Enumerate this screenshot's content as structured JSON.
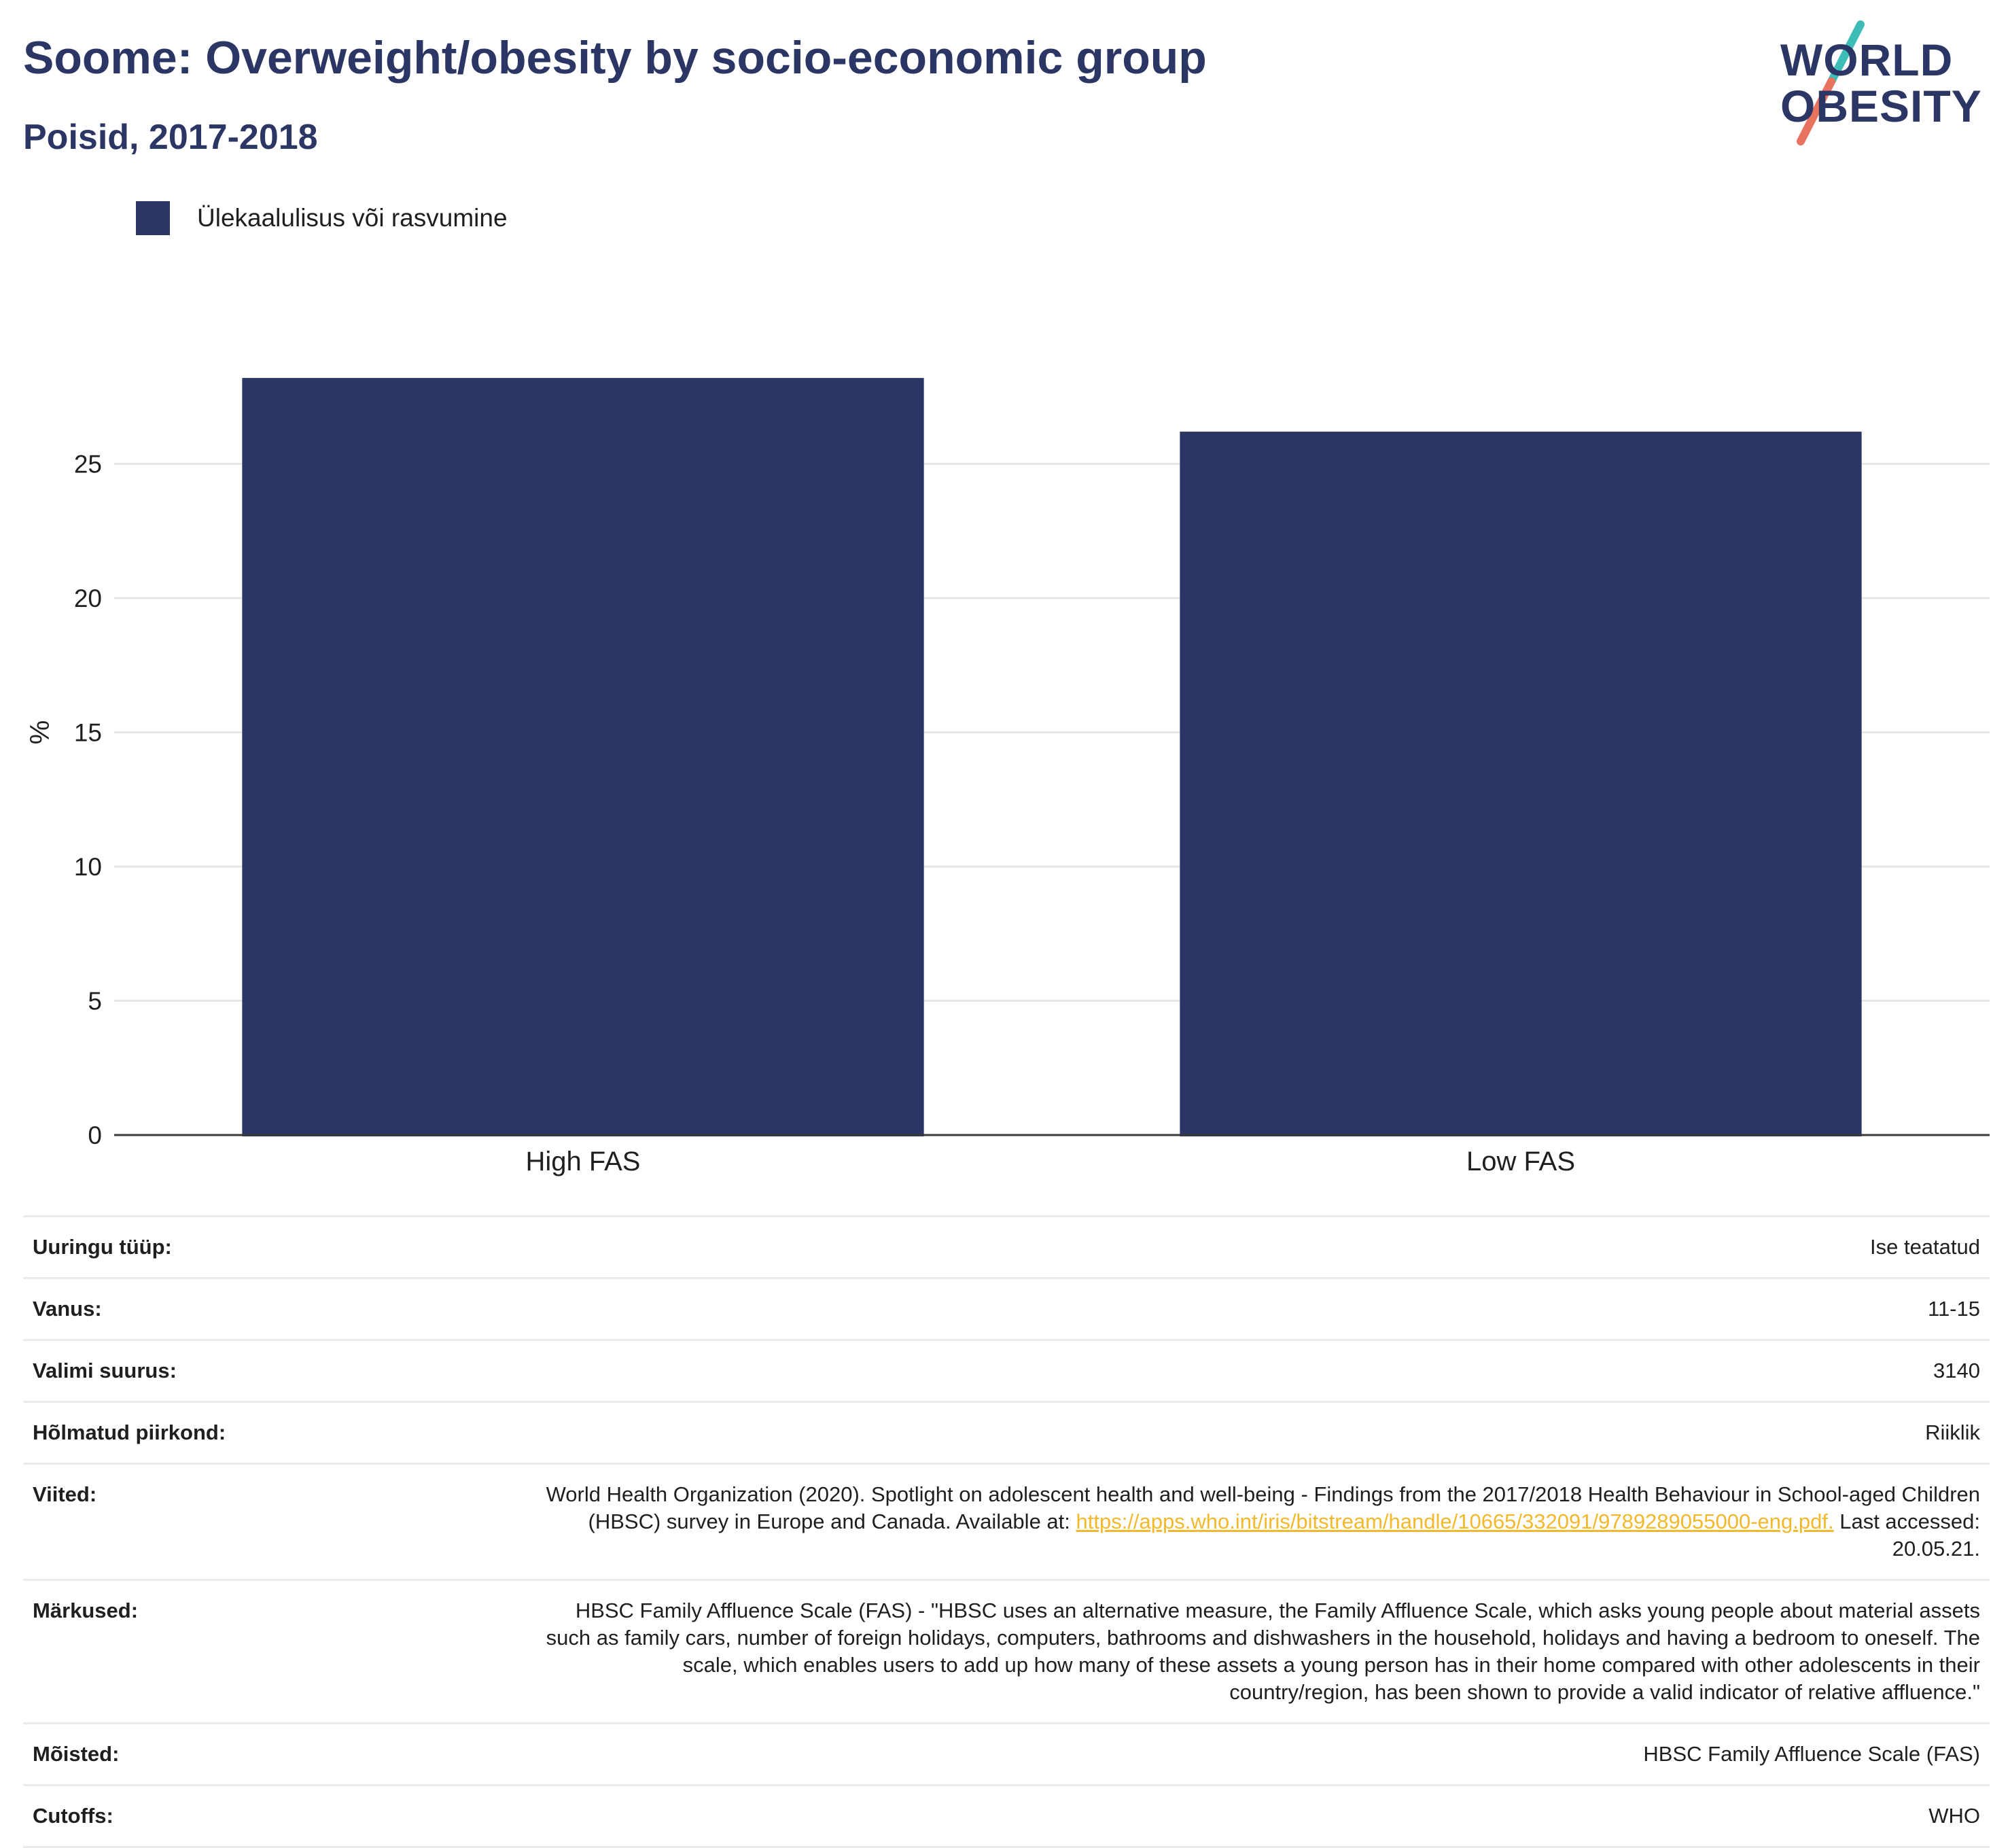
{
  "header": {
    "title": "Soome: Overweight/obesity by socio-economic group",
    "subtitle": "Poisid, 2017-2018"
  },
  "logo": {
    "line1": "WORLD",
    "line2": "OBESITY",
    "colors": {
      "text": "#2b3664",
      "slash_top": "#3dbcb8",
      "slash_bottom": "#e8735f"
    }
  },
  "legend": {
    "label": "Ülekaalulisus või rasvumine",
    "color": "#2b3664"
  },
  "chart_data": {
    "type": "bar",
    "title": "Soome: Overweight/obesity by socio-economic group",
    "subtitle": "Poisid, 2017-2018",
    "categories": [
      "High FAS",
      "Low FAS"
    ],
    "series": [
      {
        "name": "Ülekaalulisus või rasvumine",
        "values": [
          28.2,
          26.2
        ],
        "color": "#2b3664"
      }
    ],
    "ylabel": "%",
    "xlabel": "",
    "ylim": [
      0,
      30
    ],
    "yticks": [
      0,
      5,
      10,
      15,
      20,
      25
    ],
    "grid": true,
    "legend_position": "top-left"
  },
  "meta": [
    {
      "key": "Uuringu tüüp:",
      "value": "Ise teatatud"
    },
    {
      "key": "Vanus:",
      "value": "11-15"
    },
    {
      "key": "Valimi suurus:",
      "value": "3140"
    },
    {
      "key": "Hõlmatud piirkond:",
      "value": "Riiklik"
    },
    {
      "key": "Viited:",
      "value_pre": "World Health Organization (2020). Spotlight on adolescent health and well-being - Findings from the 2017/2018 Health Behaviour in School-aged Children (HBSC) survey in Europe and Canada. Available at: ",
      "link": "https://apps.who.int/iris/bitstream/handle/10665/332091/9789289055000-eng.pdf.",
      "value_post": " Last accessed: 20.05.21."
    },
    {
      "key": "Märkused:",
      "value": "HBSC Family Affluence Scale (FAS) - \"HBSC uses an alternative measure, the Family Affluence Scale, which asks young people about material assets such as family cars, number of foreign holidays, computers, bathrooms and dishwashers in the household, holidays and having a bedroom to oneself. The scale, which enables users to add up how many of these assets a young person has in their home compared with other adolescents in their country/region, has been shown to provide a valid indicator of relative affluence.\""
    },
    {
      "key": "Mõisted:",
      "value": "HBSC Family Affluence Scale (FAS)"
    },
    {
      "key": "Cutoffs:",
      "value": "WHO"
    }
  ]
}
